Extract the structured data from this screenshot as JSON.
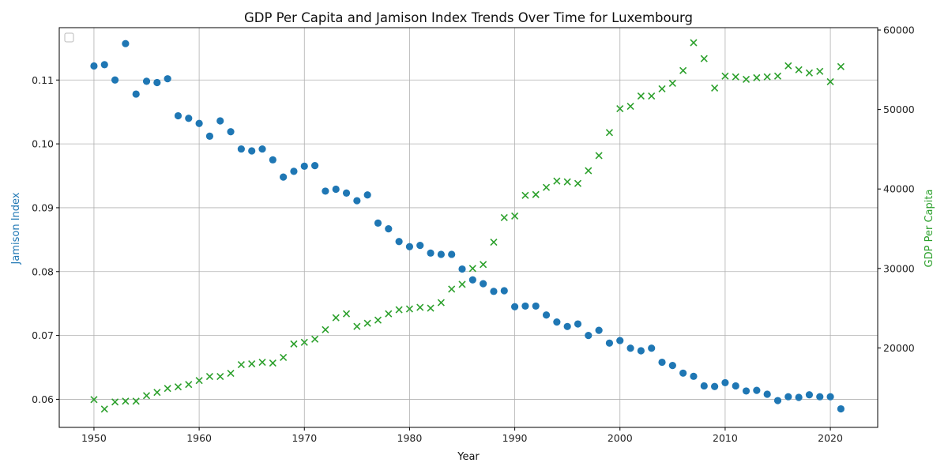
{
  "chart_data": {
    "type": "scatter",
    "title": "GDP Per Capita and Jamison Index Trends Over Time for Luxembourg",
    "xlabel": "Year",
    "ylabel_left": "Jamison Index",
    "ylabel_right": "GDP Per Capita",
    "xlim": [
      1946.7,
      2024.5
    ],
    "ylim_left": [
      0.0556,
      0.1182
    ],
    "ylim_right": [
      10000,
      60300
    ],
    "x_ticks": [
      1950,
      1960,
      1970,
      1980,
      1990,
      2000,
      2010,
      2020
    ],
    "y_ticks_left": [
      0.06,
      0.07,
      0.08,
      0.09,
      0.1,
      0.11
    ],
    "y_ticks_right": [
      20000,
      30000,
      40000,
      50000,
      60000
    ],
    "grid": true,
    "legend": "top-left",
    "colors": {
      "jamison": "#1f77b4",
      "gdp": "#2ca02c"
    },
    "series": [
      {
        "key": "jamison",
        "axis": "left",
        "marker": "circle",
        "x": [
          1950,
          1951,
          1952,
          1953,
          1954,
          1955,
          1956,
          1957,
          1958,
          1959,
          1960,
          1961,
          1962,
          1963,
          1964,
          1965,
          1966,
          1967,
          1968,
          1969,
          1970,
          1971,
          1972,
          1973,
          1974,
          1975,
          1976,
          1977,
          1978,
          1979,
          1980,
          1981,
          1982,
          1983,
          1984,
          1985,
          1986,
          1987,
          1988,
          1989,
          1990,
          1991,
          1992,
          1993,
          1994,
          1995,
          1996,
          1997,
          1998,
          1999,
          2000,
          2001,
          2002,
          2003,
          2004,
          2005,
          2006,
          2007,
          2008,
          2009,
          2010,
          2011,
          2012,
          2013,
          2014,
          2015,
          2016,
          2017,
          2018,
          2019,
          2020,
          2021
        ],
        "values": [
          0.1122,
          0.1124,
          0.11,
          0.1157,
          0.1078,
          0.1098,
          0.1096,
          0.1102,
          0.1044,
          0.104,
          0.1032,
          0.1012,
          0.1036,
          0.1019,
          0.0992,
          0.0989,
          0.0992,
          0.0975,
          0.0948,
          0.0957,
          0.0965,
          0.0966,
          0.0926,
          0.0929,
          0.0923,
          0.0911,
          0.092,
          0.0876,
          0.0867,
          0.0847,
          0.0839,
          0.0841,
          0.0829,
          0.0827,
          0.0827,
          0.0804,
          0.0787,
          0.0781,
          0.0769,
          0.077,
          0.0745,
          0.0746,
          0.0746,
          0.0732,
          0.0721,
          0.0714,
          0.0718,
          0.07,
          0.0708,
          0.0688,
          0.0692,
          0.068,
          0.0676,
          0.068,
          0.0658,
          0.0653,
          0.0641,
          0.0636,
          0.0621,
          0.062,
          0.0626,
          0.0621,
          0.0613,
          0.0614,
          0.0608,
          0.0598,
          0.0604,
          0.0603,
          0.0607,
          0.0604,
          0.0604,
          0.0585
        ]
      },
      {
        "key": "gdp",
        "axis": "right",
        "marker": "x",
        "x": [
          1950,
          1951,
          1952,
          1953,
          1954,
          1955,
          1956,
          1957,
          1958,
          1959,
          1960,
          1961,
          1962,
          1963,
          1964,
          1965,
          1966,
          1967,
          1968,
          1969,
          1970,
          1971,
          1972,
          1973,
          1974,
          1975,
          1976,
          1977,
          1978,
          1979,
          1980,
          1981,
          1982,
          1983,
          1984,
          1985,
          1986,
          1987,
          1988,
          1989,
          1990,
          1991,
          1992,
          1993,
          1994,
          1995,
          1996,
          1997,
          1998,
          1999,
          2000,
          2001,
          2002,
          2003,
          2004,
          2005,
          2006,
          2007,
          2008,
          2009,
          2010,
          2011,
          2012,
          2013,
          2014,
          2015,
          2016,
          2017,
          2018,
          2019,
          2020,
          2021
        ],
        "values": [
          13500,
          12300,
          13200,
          13300,
          13300,
          14000,
          14400,
          14900,
          15100,
          15400,
          15900,
          16400,
          16400,
          16800,
          17900,
          18000,
          18200,
          18100,
          18800,
          20500,
          20700,
          21100,
          22300,
          23800,
          24300,
          22700,
          23100,
          23500,
          24300,
          24800,
          24900,
          25100,
          25000,
          25700,
          27400,
          28000,
          30000,
          30500,
          33300,
          36400,
          36600,
          39200,
          39300,
          40200,
          41000,
          40900,
          40700,
          42300,
          44200,
          47100,
          50100,
          50400,
          51700,
          51700,
          52600,
          53300,
          54900,
          58400,
          56400,
          52700,
          54200,
          54100,
          53800,
          54000,
          54100,
          54200,
          55500,
          55000,
          54600,
          54800,
          53500,
          55400
        ]
      }
    ]
  }
}
